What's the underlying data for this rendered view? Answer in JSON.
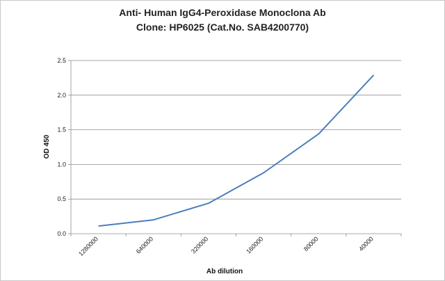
{
  "chart_data": {
    "type": "line",
    "title_line1": "Anti- Human IgG4-Peroxidase Monoclona Ab",
    "title_line2": "Clone: HP6025 (Cat.No. SAB4200770)",
    "xlabel": "Ab dilution",
    "ylabel": "OD 450",
    "categories": [
      "1280000",
      "640000",
      "320000",
      "160000",
      "80000",
      "40000"
    ],
    "y_ticks": [
      "0.0",
      "0.5",
      "1.0",
      "1.5",
      "2.0",
      "2.5"
    ],
    "ylim": [
      0,
      2.5
    ],
    "grid": true,
    "legend": "none",
    "series": [
      {
        "values": [
          0.11,
          0.2,
          0.44,
          0.88,
          1.44,
          2.29
        ],
        "color": "#4a7ebb"
      }
    ]
  }
}
